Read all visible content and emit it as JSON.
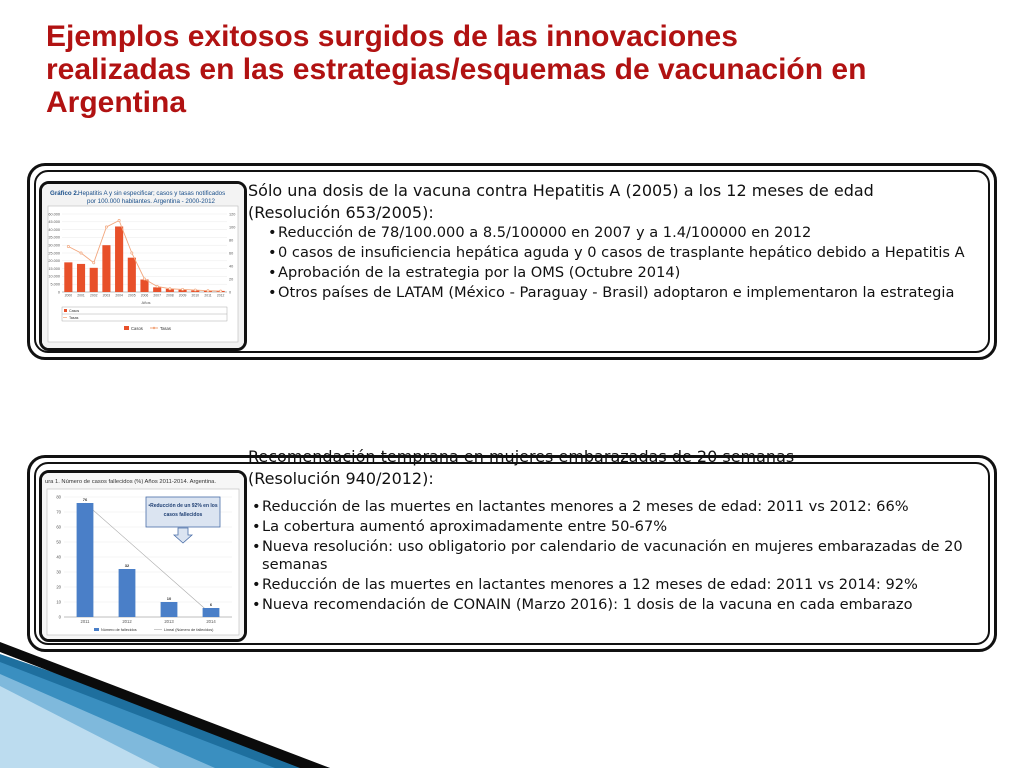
{
  "title": {
    "line1": "Ejemplos exitosos surgidos de las innovaciones",
    "line2": "realizadas en las estrategias/esquemas  de vacunación en",
    "line3": "Argentina"
  },
  "section1": {
    "heading_line1": "Sólo una dosis de la vacuna contra Hepatitis A (2005) a los 12 meses de edad",
    "heading_line2": "(Resolución 653/2005):",
    "bullets": [
      "Reducción de 78/100.000 a 8.5/100000 en 2007 y a 1.4/100000 en 2012",
      "0 casos de insuficiencia hepática aguda y 0 casos de trasplante hepático debido a Hepatitis A",
      "Aprobación de la estrategia por la OMS (Octubre 2014)",
      "Otros países de LATAM (México - Paraguay - Brasil) adoptaron e implementaron la estrategia"
    ],
    "chart_title_bold": "Gráfico 2.",
    "chart_title_rest": "Hepatitis A y sin especificar; casos y tasas notificados",
    "chart_title_line2": "por 100.000 habitantes. Argentina - 2000-2012",
    "chart_data": {
      "type": "bar",
      "categories": [
        "2000",
        "2001",
        "2002",
        "2003",
        "2004",
        "2005",
        "2006",
        "2007",
        "2008",
        "2009",
        "2010",
        "2011",
        "2012"
      ],
      "series": [
        {
          "name": "Casos",
          "values": [
            19000,
            18000,
            15500,
            30000,
            42000,
            22000,
            8000,
            3000,
            2000,
            1500,
            1000,
            700,
            700
          ]
        },
        {
          "name": "Tasas",
          "values": [
            70,
            60,
            45,
            100,
            110,
            60,
            20,
            8.5,
            5,
            4,
            3,
            2,
            1.4
          ]
        }
      ],
      "y_ticks": [
        "60.000",
        "45.000",
        "40.000",
        "35.000",
        "30.000",
        "25.000",
        "20.000",
        "15.000",
        "10.000",
        "5.000",
        "0"
      ],
      "y2_ticks": [
        "120",
        "100",
        "80",
        "60",
        "40",
        "20",
        "0"
      ],
      "xlabel": "Años",
      "legend_casos": "Casos",
      "legend_tasas": "Tasas",
      "ylim": [
        0,
        50000
      ],
      "y2lim": [
        0,
        120
      ],
      "colors": {
        "casos": "#e8502a",
        "tasas": "#f2a77e"
      }
    }
  },
  "section2": {
    "heading_line1": "Recomendación temprana en mujeres embarazadas de 20 semanas",
    "heading_line2": "(Resolución 940/2012):",
    "bullets": [
      "Reducción de las muertes en lactantes menores a 2 meses de edad: 2011 vs 2012: 66%",
      "La cobertura aumentó aproximadamente entre 50-67%",
      "Nueva resolución: uso obligatorio por calendario de vacunación en mujeres embarazadas de 20 semanas",
      "Reducción de las muertes en lactantes menores a 12 meses de edad: 2011 vs 2014: 92%",
      "Nueva recomendación de CONAIN (Marzo 2016): 1 dosis de la vacuna en cada embarazo"
    ],
    "chart_title": "ura 1. Número de casos fallecidos (%) Años 2011-2014. Argentina.",
    "callout_line1": "•Reducción de un 92% en los",
    "callout_line2": "casos fallecidos",
    "chart_data": {
      "type": "bar",
      "categories": [
        "2011",
        "2012",
        "2013",
        "2014"
      ],
      "series": [
        {
          "name": "Número de fallecidos",
          "values": [
            76,
            32,
            10,
            6
          ]
        }
      ],
      "y_ticks": [
        "80",
        "70",
        "60",
        "50",
        "40",
        "30",
        "20",
        "10",
        "0"
      ],
      "ylim": [
        0,
        80
      ],
      "legend_bar": "Número de fallecidos",
      "legend_line": "Lineal (Número de fallecidos)",
      "colors": {
        "bar": "#4a7fc8"
      }
    }
  }
}
